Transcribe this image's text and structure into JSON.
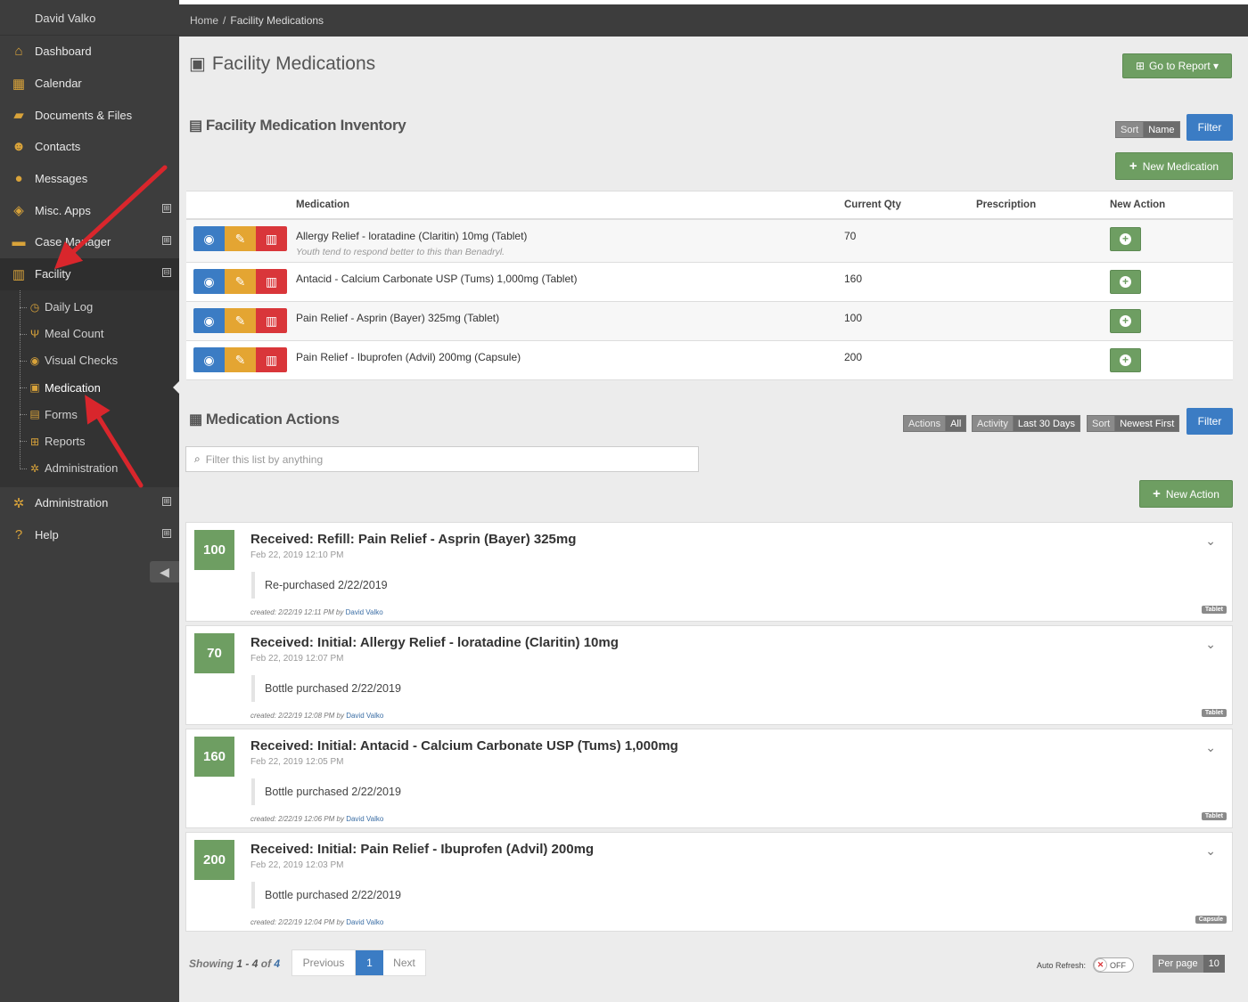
{
  "user": {
    "name": "David Valko"
  },
  "sidebar": {
    "items": [
      {
        "label": "Dashboard",
        "icon": "home-icon",
        "expand": ""
      },
      {
        "label": "Calendar",
        "icon": "calendar-icon",
        "expand": ""
      },
      {
        "label": "Documents & Files",
        "icon": "folder-icon",
        "expand": ""
      },
      {
        "label": "Contacts",
        "icon": "users-icon",
        "expand": ""
      },
      {
        "label": "Messages",
        "icon": "comments-icon",
        "expand": ""
      },
      {
        "label": "Misc. Apps",
        "icon": "cubes-icon",
        "expand": "⊞"
      },
      {
        "label": "Case Manager",
        "icon": "briefcase-icon",
        "expand": "⊞"
      },
      {
        "label": "Facility",
        "icon": "building-icon",
        "expand": "⊟"
      }
    ],
    "facility_sub": [
      {
        "label": "Daily Log",
        "icon": "clock-icon"
      },
      {
        "label": "Meal Count",
        "icon": "utensils-icon"
      },
      {
        "label": "Visual Checks",
        "icon": "eye-icon"
      },
      {
        "label": "Medication",
        "icon": "medkit-icon"
      },
      {
        "label": "Forms",
        "icon": "list-icon"
      },
      {
        "label": "Reports",
        "icon": "table-icon"
      },
      {
        "label": "Administration",
        "icon": "gears-icon"
      }
    ],
    "bottom_items": [
      {
        "label": "Administration",
        "icon": "gears-icon",
        "expand": "⊞"
      },
      {
        "label": "Help",
        "icon": "help-icon",
        "expand": "⊞"
      }
    ]
  },
  "breadcrumb": {
    "home": "Home",
    "sep": "/",
    "current": "Facility Medications"
  },
  "page": {
    "title": "Facility Medications",
    "go_report": "Go to Report ▾"
  },
  "inventory": {
    "title": "Facility Medication Inventory",
    "sort_label": "Sort",
    "sort_value": "Name",
    "filter_label": "Filter",
    "new_label": "New Medication",
    "headers": {
      "medication": "Medication",
      "qty": "Current Qty",
      "rx": "Prescription",
      "action": "New Action"
    },
    "rows": [
      {
        "name": "Allergy Relief - loratadine (Claritin) 10mg (Tablet)",
        "note": "Youth tend to respond better to this than Benadryl.",
        "qty": "70",
        "rx": ""
      },
      {
        "name": "Antacid - Calcium Carbonate USP (Tums) 1,000mg (Tablet)",
        "note": "",
        "qty": "160",
        "rx": ""
      },
      {
        "name": "Pain Relief - Asprin (Bayer) 325mg (Tablet)",
        "note": "",
        "qty": "100",
        "rx": ""
      },
      {
        "name": "Pain Relief - Ibuprofen (Advil) 200mg (Capsule)",
        "note": "",
        "qty": "200",
        "rx": ""
      }
    ]
  },
  "actions": {
    "title": "Medication Actions",
    "filters": [
      {
        "label": "Actions",
        "value": "All"
      },
      {
        "label": "Activity",
        "value": "Last 30 Days"
      },
      {
        "label": "Sort",
        "value": "Newest First"
      }
    ],
    "filter_label": "Filter",
    "search_placeholder": "Filter this list by anything",
    "new_label": "New Action",
    "items": [
      {
        "qty": "100",
        "title": "Received: Refill: Pain Relief - Asprin (Bayer) 325mg",
        "date": "Feb 22, 2019 12:10 PM",
        "note": "Re-purchased 2/22/2019",
        "created": "created: 2/22/19 12:11 PM by",
        "author": "David Valko",
        "tag": "Tablet"
      },
      {
        "qty": "70",
        "title": "Received: Initial: Allergy Relief - loratadine (Claritin) 10mg",
        "date": "Feb 22, 2019 12:07 PM",
        "note": "Bottle purchased 2/22/2019",
        "created": "created: 2/22/19 12:08 PM by",
        "author": "David Valko",
        "tag": "Tablet"
      },
      {
        "qty": "160",
        "title": "Received: Initial: Antacid - Calcium Carbonate USP (Tums) 1,000mg",
        "date": "Feb 22, 2019 12:05 PM",
        "note": "Bottle purchased 2/22/2019",
        "created": "created: 2/22/19 12:06 PM by",
        "author": "David Valko",
        "tag": "Tablet"
      },
      {
        "qty": "200",
        "title": "Received: Initial: Pain Relief - Ibuprofen (Advil) 200mg",
        "date": "Feb 22, 2019 12:03 PM",
        "note": "Bottle purchased 2/22/2019",
        "created": "created: 2/22/19 12:04 PM by",
        "author": "David Valko",
        "tag": "Capsule"
      }
    ]
  },
  "footer": {
    "showing": "Showing",
    "from": "1",
    "dash": "-",
    "to": "4",
    "of": "of",
    "total": "4",
    "prev": "Previous",
    "page": "1",
    "next": "Next",
    "auto_refresh": "Auto Refresh:",
    "toggle_state": "OFF",
    "per_page_label": "Per page",
    "per_page_value": "10"
  },
  "colors": {
    "accent_green": "#6e9e62",
    "accent_blue": "#3b7cc4",
    "sidebar_bg": "#3d3d3d",
    "icon_gold": "#d9a33a"
  }
}
